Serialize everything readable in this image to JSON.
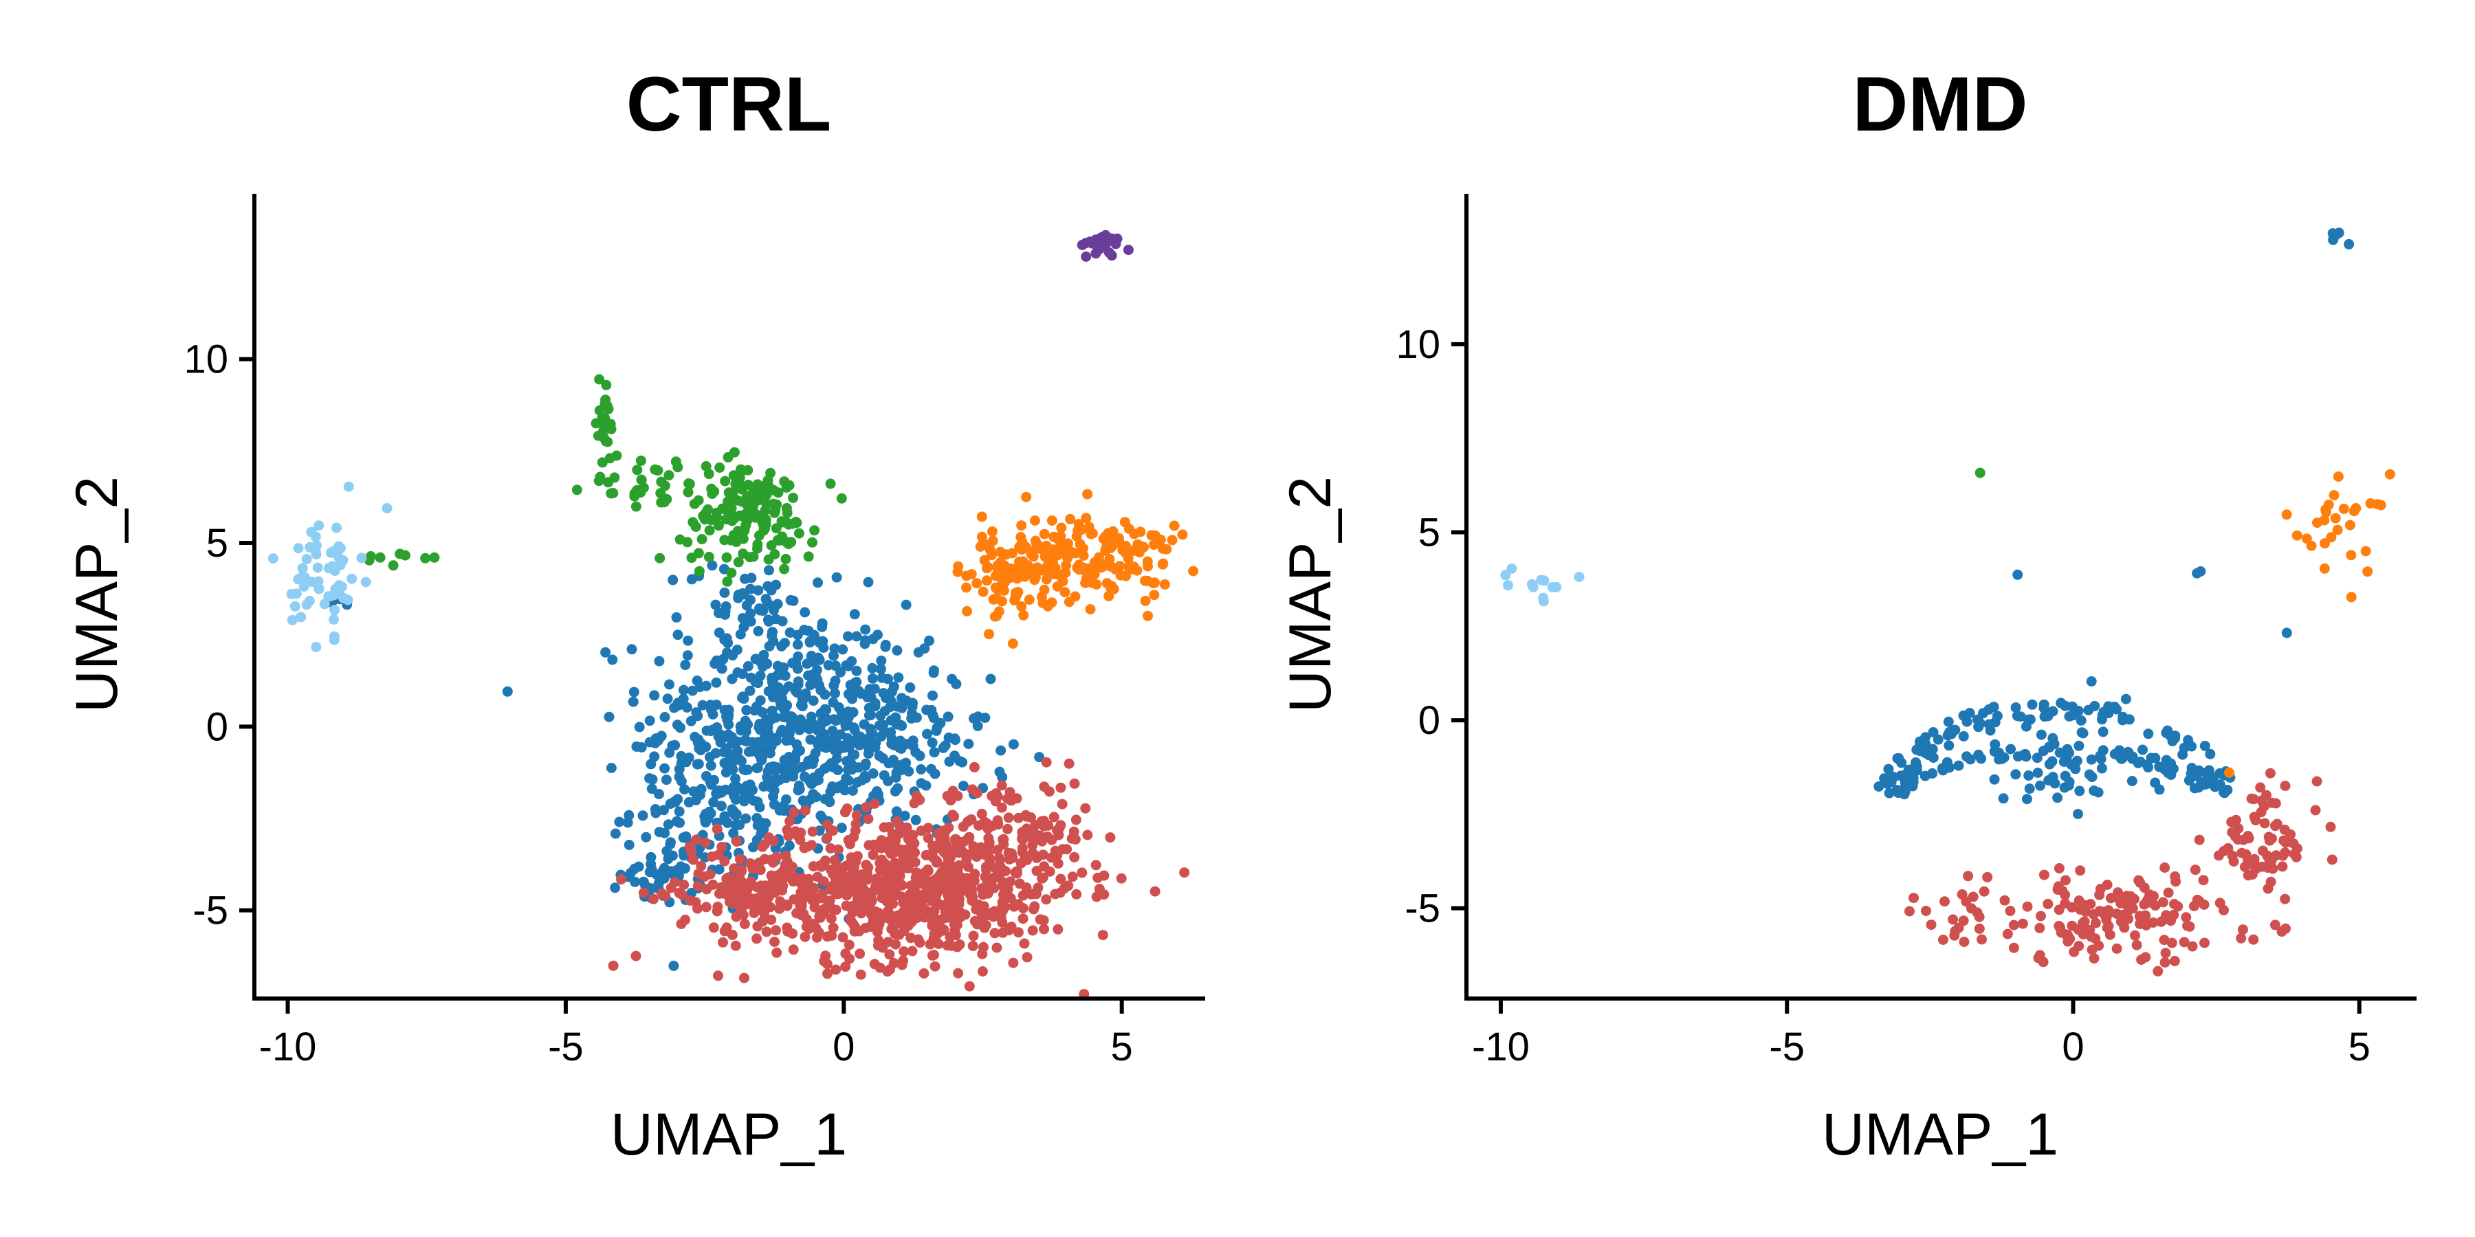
{
  "chart_data": [
    {
      "type": "scatter",
      "title": "CTRL",
      "xlabel": "UMAP_1",
      "ylabel": "UMAP_2",
      "xlim": [
        -10.6,
        6.5
      ],
      "ylim": [
        -7.4,
        14.5
      ],
      "xticks": [
        -10,
        -5,
        0,
        5
      ],
      "xtick_labels": [
        "-10",
        "-5",
        "0",
        "5"
      ],
      "yticks": [
        -5,
        0,
        5,
        10
      ],
      "ytick_labels": [
        "-5",
        "0",
        "5",
        "10"
      ],
      "grid": false,
      "clusters": [
        {
          "name": "cluster_blue",
          "color": "#1F77B4",
          "regions": [
            {
              "cx": -1.2,
              "cy": 0.2,
              "sx": 1.2,
              "sy": 1.6,
              "n": 420
            },
            {
              "cx": -2.0,
              "cy": -2.2,
              "sx": 0.9,
              "sy": 1.0,
              "n": 160
            },
            {
              "cx": -3.2,
              "cy": -4.0,
              "sx": 0.4,
              "sy": 0.4,
              "n": 40
            },
            {
              "cx": 0.6,
              "cy": -0.6,
              "sx": 1.0,
              "sy": 1.2,
              "n": 200
            },
            {
              "cx": -1.8,
              "cy": 3.5,
              "sx": 0.5,
              "sy": 0.5,
              "n": 40
            },
            {
              "cx": -9.1,
              "cy": 3.4,
              "sx": 0.2,
              "sy": 0.15,
              "n": 4
            },
            {
              "cx": 4.8,
              "cy": 13.1,
              "sx": 0.08,
              "sy": 0.08,
              "n": 2
            }
          ]
        },
        {
          "name": "cluster_red",
          "color": "#D0504F",
          "regions": [
            {
              "cx": 1.0,
              "cy": -4.4,
              "sx": 1.6,
              "sy": 1.0,
              "n": 700
            },
            {
              "cx": 3.0,
              "cy": -3.0,
              "sx": 0.7,
              "sy": 0.8,
              "n": 120
            },
            {
              "cx": -1.8,
              "cy": -4.4,
              "sx": 0.6,
              "sy": 0.5,
              "n": 80
            }
          ]
        },
        {
          "name": "cluster_orange",
          "color": "#FF7F0E",
          "regions": [
            {
              "cx": 4.3,
              "cy": 4.6,
              "sx": 0.9,
              "sy": 0.6,
              "n": 200
            },
            {
              "cx": 3.0,
              "cy": 4.0,
              "sx": 0.5,
              "sy": 0.6,
              "n": 50
            }
          ]
        },
        {
          "name": "cluster_green",
          "color": "#2CA02C",
          "regions": [
            {
              "cx": -1.7,
              "cy": 5.8,
              "sx": 0.6,
              "sy": 0.7,
              "n": 150
            },
            {
              "cx": -3.4,
              "cy": 6.6,
              "sx": 0.6,
              "sy": 0.4,
              "n": 35
            },
            {
              "cx": -4.3,
              "cy": 8.5,
              "sx": 0.1,
              "sy": 0.6,
              "n": 20
            },
            {
              "cx": -8.0,
              "cy": 4.6,
              "sx": 0.3,
              "sy": 0.15,
              "n": 8
            }
          ]
        },
        {
          "name": "cluster_purple",
          "color": "#6A3D9A",
          "regions": [
            {
              "cx": 4.6,
              "cy": 13.1,
              "sx": 0.2,
              "sy": 0.15,
              "n": 30
            }
          ]
        },
        {
          "name": "cluster_lightblue",
          "color": "#8ECEF5",
          "regions": [
            {
              "cx": -9.3,
              "cy": 4.2,
              "sx": 0.3,
              "sy": 0.8,
              "n": 60
            }
          ]
        }
      ]
    },
    {
      "type": "scatter",
      "title": "DMD",
      "xlabel": "UMAP_1",
      "ylabel": "UMAP_2",
      "xlim": [
        -10.6,
        6.0
      ],
      "ylim": [
        -7.4,
        14.0
      ],
      "xticks": [
        -10,
        -5,
        0,
        5
      ],
      "xtick_labels": [
        "-10",
        "-5",
        "0",
        "5"
      ],
      "yticks": [
        -5,
        0,
        5,
        10
      ],
      "ytick_labels": [
        "-5",
        "0",
        "5",
        "10"
      ],
      "grid": false,
      "clusters": [
        {
          "name": "cluster_blue",
          "color": "#1F77B4",
          "ring": {
            "cx": -0.3,
            "cy": -2.2,
            "rx": 3.0,
            "ry": 2.6,
            "n": 180
          },
          "regions": [
            {
              "cx": -0.3,
              "cy": -1.2,
              "sx": 0.9,
              "sy": 0.8,
              "n": 60
            },
            {
              "cx": 4.6,
              "cy": 12.9,
              "sx": 0.2,
              "sy": 0.15,
              "n": 6
            },
            {
              "cx": 2.2,
              "cy": 4.0,
              "sx": 0.05,
              "sy": 0.05,
              "n": 2
            },
            {
              "cx": -1.0,
              "cy": 3.8,
              "sx": 0.05,
              "sy": 0.05,
              "n": 1
            },
            {
              "cx": 3.7,
              "cy": 2.3,
              "sx": 0.05,
              "sy": 0.05,
              "n": 1
            }
          ]
        },
        {
          "name": "cluster_red",
          "color": "#D0504F",
          "regions": [
            {
              "cx": 0.8,
              "cy": -5.2,
              "sx": 1.3,
              "sy": 0.6,
              "n": 150
            },
            {
              "cx": 3.3,
              "cy": -3.2,
              "sx": 0.5,
              "sy": 0.7,
              "n": 70
            },
            {
              "cx": -1.6,
              "cy": -5.2,
              "sx": 0.6,
              "sy": 0.4,
              "n": 20
            }
          ]
        },
        {
          "name": "cluster_orange",
          "color": "#FF7F0E",
          "regions": [
            {
              "cx": 4.6,
              "cy": 5.0,
              "sx": 0.45,
              "sy": 0.8,
              "n": 28
            },
            {
              "cx": 2.7,
              "cy": -1.3,
              "sx": 0.03,
              "sy": 0.03,
              "n": 1
            }
          ]
        },
        {
          "name": "cluster_green",
          "color": "#2CA02C",
          "regions": [
            {
              "cx": -1.6,
              "cy": 6.6,
              "sx": 0.03,
              "sy": 0.03,
              "n": 1
            }
          ]
        },
        {
          "name": "cluster_lightblue",
          "color": "#8ECEF5",
          "regions": [
            {
              "cx": -9.4,
              "cy": 3.6,
              "sx": 0.35,
              "sy": 0.2,
              "n": 12
            }
          ]
        }
      ]
    }
  ]
}
